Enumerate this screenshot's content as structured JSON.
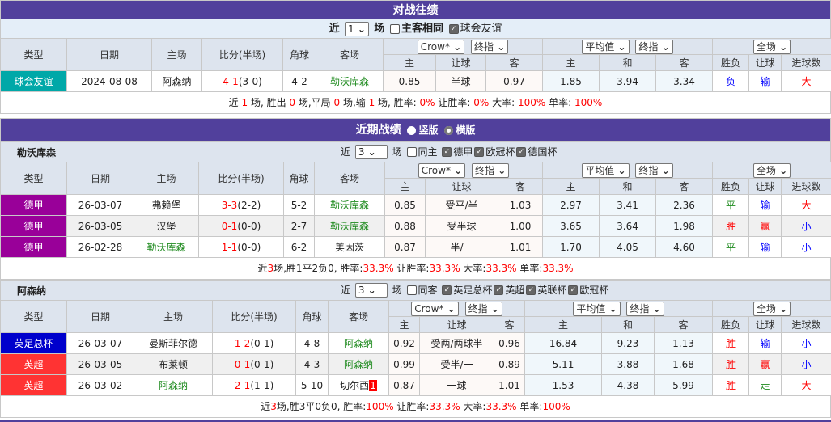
{
  "h2h": {
    "title": "对战往绩",
    "near": "近",
    "count": "1",
    "unit": "场",
    "same_label": "主客相同",
    "same_checked": false,
    "league_label": "球会友谊",
    "league_checked": true,
    "headers": {
      "type": "类型",
      "date": "日期",
      "home": "主场",
      "score": "比分(半场)",
      "corner": "角球",
      "away": "客场",
      "company": "Crow*",
      "odds_kind": "终指",
      "avg": "平均值",
      "avg_kind": "终指",
      "period": "全场",
      "h": "主",
      "hc": "让球",
      "a": "客",
      "ah": "主",
      "d": "和",
      "aa": "客",
      "wl": "胜负",
      "hcr": "让球",
      "ou": "进球数"
    },
    "rows": [
      {
        "type": "球会友谊",
        "type_color": "#00a8a8",
        "date": "2024-08-08",
        "home": "阿森纳",
        "home_green": false,
        "score": "4-1",
        "half": "(3-0)",
        "corner": "4-2",
        "away": "勒沃库森",
        "away_green": true,
        "away_mark": "",
        "o1": "0.85",
        "o2": "半球",
        "o3": "0.97",
        "e1": "1.85",
        "e2": "3.94",
        "e3": "3.34",
        "wl": "负",
        "wl_color": "#00f",
        "hc": "输",
        "hc_color": "#00f",
        "ou": "大",
        "ou_color": "#f00"
      }
    ],
    "summary": [
      [
        "近 ",
        ""
      ],
      [
        "1",
        "r"
      ],
      [
        " 场, 胜出 ",
        ""
      ],
      [
        "0",
        "r"
      ],
      [
        " 场,平局 ",
        ""
      ],
      [
        "0",
        "r"
      ],
      [
        " 场,输 ",
        ""
      ],
      [
        "1",
        "r"
      ],
      [
        " 场, 胜率: ",
        ""
      ],
      [
        "0%",
        "r"
      ],
      [
        " 让胜率: ",
        ""
      ],
      [
        "0%",
        "r"
      ],
      [
        " 大率: ",
        ""
      ],
      [
        "100%",
        "r"
      ],
      [
        " 单率: ",
        ""
      ],
      [
        "100%",
        "r"
      ]
    ]
  },
  "recent": {
    "title": "近期战绩",
    "view_vertical": "竖版",
    "view_horizontal": "横版",
    "selected_view": "横版"
  },
  "teams": [
    {
      "name": "勒沃库森",
      "near": "近",
      "count": "3",
      "unit": "场",
      "same_label": "同主",
      "same_checked": false,
      "leagues": [
        "德甲",
        "欧冠杯",
        "德国杯"
      ],
      "rows": [
        {
          "type": "德甲",
          "type_color": "#990099",
          "date": "26-03-07",
          "home": "弗赖堡",
          "home_green": false,
          "score": "3-3",
          "half": "(2-2)",
          "corner": "5-2",
          "away": "勒沃库森",
          "away_green": true,
          "away_mark": "",
          "o1": "0.85",
          "o2": "受平/半",
          "o3": "1.03",
          "e1": "2.97",
          "e2": "3.41",
          "e3": "2.36",
          "wl": "平",
          "wl_color": "#1e8a1e",
          "hc": "输",
          "hc_color": "#00f",
          "ou": "大",
          "ou_color": "#f00"
        },
        {
          "type": "德甲",
          "type_color": "#990099",
          "date": "26-03-05",
          "home": "汉堡",
          "home_green": false,
          "score": "0-1",
          "half": "(0-0)",
          "corner": "2-7",
          "away": "勒沃库森",
          "away_green": true,
          "away_mark": "",
          "o1": "0.88",
          "o2": "受半球",
          "o3": "1.00",
          "e1": "3.65",
          "e2": "3.64",
          "e3": "1.98",
          "wl": "胜",
          "wl_color": "#f00",
          "hc": "赢",
          "hc_color": "#f00",
          "ou": "小",
          "ou_color": "#00f"
        },
        {
          "type": "德甲",
          "type_color": "#990099",
          "date": "26-02-28",
          "home": "勒沃库森",
          "home_green": true,
          "score": "1-1",
          "half": "(0-0)",
          "corner": "6-2",
          "away": "美因茨",
          "away_green": false,
          "away_mark": "",
          "o1": "0.87",
          "o2": "半/一",
          "o3": "1.01",
          "e1": "1.70",
          "e2": "4.05",
          "e3": "4.60",
          "wl": "平",
          "wl_color": "#1e8a1e",
          "hc": "输",
          "hc_color": "#00f",
          "ou": "小",
          "ou_color": "#00f"
        }
      ],
      "summary": [
        [
          "近",
          ""
        ],
        [
          "3",
          "r"
        ],
        [
          "场,胜1平2负0, 胜率:",
          ""
        ],
        [
          "33.3%",
          "r"
        ],
        [
          " 让胜率:",
          ""
        ],
        [
          "33.3%",
          "r"
        ],
        [
          " 大率:",
          ""
        ],
        [
          "33.3%",
          "r"
        ],
        [
          " 单率:",
          ""
        ],
        [
          "33.3%",
          "r"
        ]
      ]
    },
    {
      "name": "阿森纳",
      "near": "近",
      "count": "3",
      "unit": "场",
      "same_label": "同客",
      "same_checked": false,
      "leagues": [
        "英足总杯",
        "英超",
        "英联杯",
        "欧冠杯"
      ],
      "rows": [
        {
          "type": "英足总杯",
          "type_color": "#0000cc",
          "date": "26-03-07",
          "home": "曼斯菲尔德",
          "home_green": false,
          "score": "1-2",
          "half": "(0-1)",
          "corner": "4-8",
          "away": "阿森纳",
          "away_green": true,
          "away_mark": "",
          "o1": "0.92",
          "o2": "受两/两球半",
          "o3": "0.96",
          "e1": "16.84",
          "e2": "9.23",
          "e3": "1.13",
          "wl": "胜",
          "wl_color": "#f00",
          "hc": "输",
          "hc_color": "#00f",
          "ou": "小",
          "ou_color": "#00f"
        },
        {
          "type": "英超",
          "type_color": "#ff3333",
          "date": "26-03-05",
          "home": "布莱顿",
          "home_green": false,
          "score": "0-1",
          "half": "(0-1)",
          "corner": "4-3",
          "away": "阿森纳",
          "away_green": true,
          "away_mark": "",
          "o1": "0.99",
          "o2": "受半/一",
          "o3": "0.89",
          "e1": "5.11",
          "e2": "3.88",
          "e3": "1.68",
          "wl": "胜",
          "wl_color": "#f00",
          "hc": "赢",
          "hc_color": "#f00",
          "ou": "小",
          "ou_color": "#00f"
        },
        {
          "type": "英超",
          "type_color": "#ff3333",
          "date": "26-03-02",
          "home": "阿森纳",
          "home_green": true,
          "score": "2-1",
          "half": "(1-1)",
          "corner": "5-10",
          "away": "切尔西",
          "away_green": false,
          "away_mark": "1",
          "o1": "0.87",
          "o2": "一球",
          "o3": "1.01",
          "e1": "1.53",
          "e2": "4.38",
          "e3": "5.99",
          "wl": "胜",
          "wl_color": "#f00",
          "hc": "走",
          "hc_color": "#1e8a1e",
          "ou": "大",
          "ou_color": "#f00"
        }
      ],
      "summary": [
        [
          "近",
          ""
        ],
        [
          "3",
          "r"
        ],
        [
          "场,胜3平0负0, 胜率:",
          ""
        ],
        [
          "100%",
          "r"
        ],
        [
          " 让胜率:",
          ""
        ],
        [
          "33.3%",
          "r"
        ],
        [
          " 大率:",
          ""
        ],
        [
          "33.3%",
          "r"
        ],
        [
          " 单率:",
          ""
        ],
        [
          "100%",
          "r"
        ]
      ]
    }
  ]
}
